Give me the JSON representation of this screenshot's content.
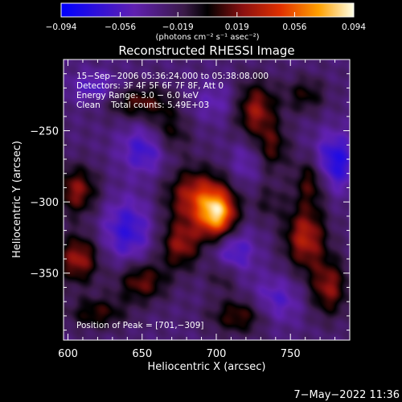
{
  "chart_data": {
    "type": "heatmap",
    "title": "Reconstructed RHESSI Image",
    "xlabel": "Heliocentric X (arcsec)",
    "ylabel": "Heliocentric Y (arcsec)",
    "xlim": [
      597,
      790
    ],
    "ylim": [
      -397,
      -200
    ],
    "x_ticks": [
      600,
      650,
      700,
      750
    ],
    "x_tick_labels": [
      "600",
      "650",
      "700",
      "750"
    ],
    "y_ticks": [
      -250,
      -300,
      -350
    ],
    "y_tick_labels": [
      "−250",
      "−300",
      "−350"
    ],
    "colorbar": {
      "range": [
        -0.094,
        0.094
      ],
      "ticks": [
        -0.094,
        -0.056,
        -0.019,
        0.019,
        0.056,
        0.094
      ],
      "tick_labels": [
        "−0.094",
        "−0.056",
        "−0.019",
        "0.019",
        "0.056",
        "0.094"
      ],
      "label": "(photons cm⁻² s⁻¹ asec⁻²)"
    },
    "annotations": [
      "15−Sep−2006 05:36:24.000 to 05:38:08.000",
      "Detectors: 3F 4F 5F 6F 7F 8F, Att 0",
      "Energy Range: 3.0 − 6.0 keV",
      "Clean    Total counts: 5.49E+03"
    ],
    "peak_label": "Position of Peak = [701,−309]",
    "peak": [
      701,
      -309
    ],
    "sources": [
      {
        "x": 701,
        "y": -309,
        "amp": 0.094,
        "sx": 9,
        "sy": 12
      },
      {
        "x": 686,
        "y": -296,
        "amp": 0.06,
        "sx": 14,
        "sy": 14
      },
      {
        "x": 676,
        "y": -330,
        "amp": 0.05,
        "sx": 10,
        "sy": 12
      },
      {
        "x": 650,
        "y": -356,
        "amp": 0.045,
        "sx": 12,
        "sy": 10
      },
      {
        "x": 620,
        "y": -378,
        "amp": 0.035,
        "sx": 14,
        "sy": 8
      },
      {
        "x": 726,
        "y": -235,
        "amp": 0.055,
        "sx": 10,
        "sy": 14
      },
      {
        "x": 738,
        "y": -262,
        "amp": 0.035,
        "sx": 8,
        "sy": 12
      },
      {
        "x": 606,
        "y": -292,
        "amp": 0.05,
        "sx": 10,
        "sy": 12
      },
      {
        "x": 607,
        "y": -340,
        "amp": 0.055,
        "sx": 10,
        "sy": 12
      },
      {
        "x": 648,
        "y": -230,
        "amp": 0.04,
        "sx": 16,
        "sy": 8
      },
      {
        "x": 668,
        "y": -252,
        "amp": 0.035,
        "sx": 10,
        "sy": 12
      },
      {
        "x": 760,
        "y": -325,
        "amp": 0.06,
        "sx": 10,
        "sy": 16
      },
      {
        "x": 776,
        "y": -360,
        "amp": 0.05,
        "sx": 9,
        "sy": 14
      },
      {
        "x": 764,
        "y": -285,
        "amp": 0.04,
        "sx": 8,
        "sy": 12
      },
      {
        "x": 716,
        "y": -380,
        "amp": 0.04,
        "sx": 14,
        "sy": 9
      },
      {
        "x": 705,
        "y": -352,
        "amp": 0.025,
        "sx": 8,
        "sy": 8
      },
      {
        "x": 760,
        "y": -225,
        "amp": 0.03,
        "sx": 10,
        "sy": 9
      },
      {
        "x": 735,
        "y": -300,
        "amp": 0.02,
        "sx": 8,
        "sy": 10
      },
      {
        "x": 653,
        "y": -263,
        "amp": -0.04,
        "sx": 12,
        "sy": 12
      },
      {
        "x": 640,
        "y": -320,
        "amp": -0.04,
        "sx": 12,
        "sy": 16
      },
      {
        "x": 780,
        "y": -272,
        "amp": -0.05,
        "sx": 10,
        "sy": 14
      },
      {
        "x": 712,
        "y": -335,
        "amp": -0.035,
        "sx": 10,
        "sy": 12
      },
      {
        "x": 740,
        "y": -370,
        "amp": -0.03,
        "sx": 12,
        "sy": 12
      },
      {
        "x": 700,
        "y": -230,
        "amp": -0.02,
        "sx": 14,
        "sy": 10
      },
      {
        "x": 618,
        "y": -220,
        "amp": -0.03,
        "sx": 12,
        "sy": 8
      },
      {
        "x": 720,
        "y": -272,
        "amp": -0.02,
        "sx": 8,
        "sy": 12
      }
    ]
  },
  "footer": {
    "timestamp": "7−May−2022 11:36"
  }
}
